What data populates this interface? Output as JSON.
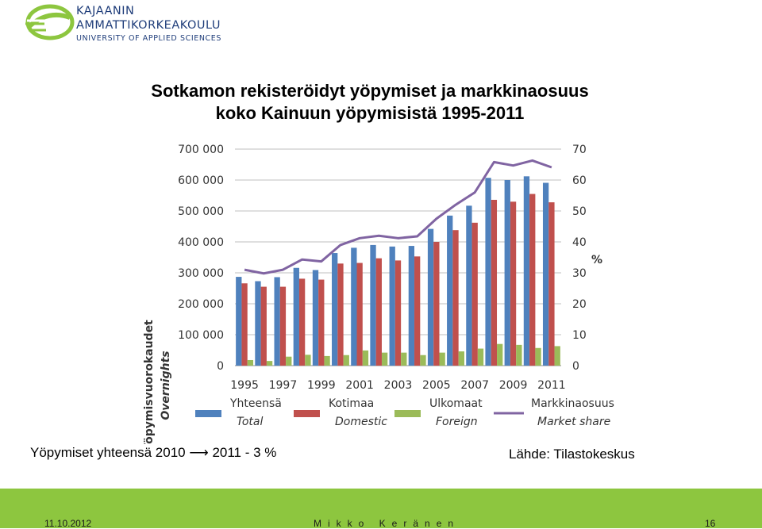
{
  "header": {
    "logo_line1": "KAJAANIN",
    "logo_line2": "AMMATTIKORKEAKOULU",
    "logo_line3": "UNIVERSITY OF APPLIED SCIENCES"
  },
  "slide": {
    "title_line1": "Sotkamon rekisteröidyt yöpymiset ja markkinaosuus",
    "title_line2": "koko Kainuun yöpymisistä 1995-2011",
    "note_left": "Yöpymiset yhteensä 2010 ⟶ 2011   - 3 %",
    "note_right": "Lähde: Tilastokeskus"
  },
  "footer": {
    "date": "11.10.2012",
    "name": "Mikko Keränen",
    "page": "16"
  },
  "colors": {
    "total": "#4f81bd",
    "domestic": "#c0504d",
    "foreign": "#9bbb59",
    "share": "#8064a2",
    "footer": "#8dc63f"
  },
  "chart_data": {
    "type": "bar",
    "categories": [
      "1995",
      "1996",
      "1997",
      "1998",
      "1999",
      "2000",
      "2001",
      "2002",
      "2003",
      "2004",
      "2005",
      "2006",
      "2007",
      "2008",
      "2009",
      "2010",
      "2011"
    ],
    "x_tick_labels": [
      "1995",
      "1997",
      "1999",
      "2001",
      "2003",
      "2005",
      "2007",
      "2009",
      "2011"
    ],
    "series": [
      {
        "name": "Yhteensä",
        "name2": "Total",
        "type": "bar",
        "axis": "left",
        "color": "#4f81bd",
        "values": [
          287000,
          273000,
          286000,
          316000,
          309000,
          364000,
          381000,
          390000,
          385000,
          387000,
          442000,
          485000,
          517000,
          607000,
          600000,
          612000,
          591000
        ]
      },
      {
        "name": "Kotimaa",
        "name2": "Domestic",
        "type": "bar",
        "axis": "left",
        "color": "#c0504d",
        "values": [
          266000,
          255000,
          255000,
          281000,
          278000,
          330000,
          332000,
          347000,
          340000,
          353000,
          400000,
          438000,
          462000,
          536000,
          530000,
          555000,
          528000
        ]
      },
      {
        "name": "Ulkomaat",
        "name2": "Foreign",
        "type": "bar",
        "axis": "left",
        "color": "#9bbb59",
        "values": [
          18000,
          15000,
          29000,
          35000,
          31000,
          34000,
          49000,
          42000,
          42000,
          34000,
          42000,
          46000,
          55000,
          70000,
          67000,
          57000,
          63000
        ]
      },
      {
        "name": "Markkinaosuus",
        "name2": "Market share",
        "type": "line",
        "axis": "right",
        "color": "#8064a2",
        "values": [
          31,
          29.8,
          31,
          34.3,
          33.7,
          39,
          41.2,
          42,
          41.2,
          41.8,
          47.5,
          52,
          56,
          65.8,
          64.7,
          66.3,
          64.1
        ]
      }
    ],
    "y_left": {
      "label": "Yöpymisvuorokaudet",
      "label2": "Overnights",
      "ylim": [
        0,
        700000
      ],
      "tick_labels": [
        "0",
        "100 000",
        "200 000",
        "300 000",
        "400 000",
        "500 000",
        "600 000",
        "700 000"
      ]
    },
    "y_right": {
      "label": "%",
      "ylim": [
        0,
        70
      ],
      "tick_labels": [
        "0",
        "10",
        "20",
        "30",
        "40",
        "50",
        "60",
        "70"
      ]
    },
    "grid": true,
    "legend": "bottom"
  }
}
